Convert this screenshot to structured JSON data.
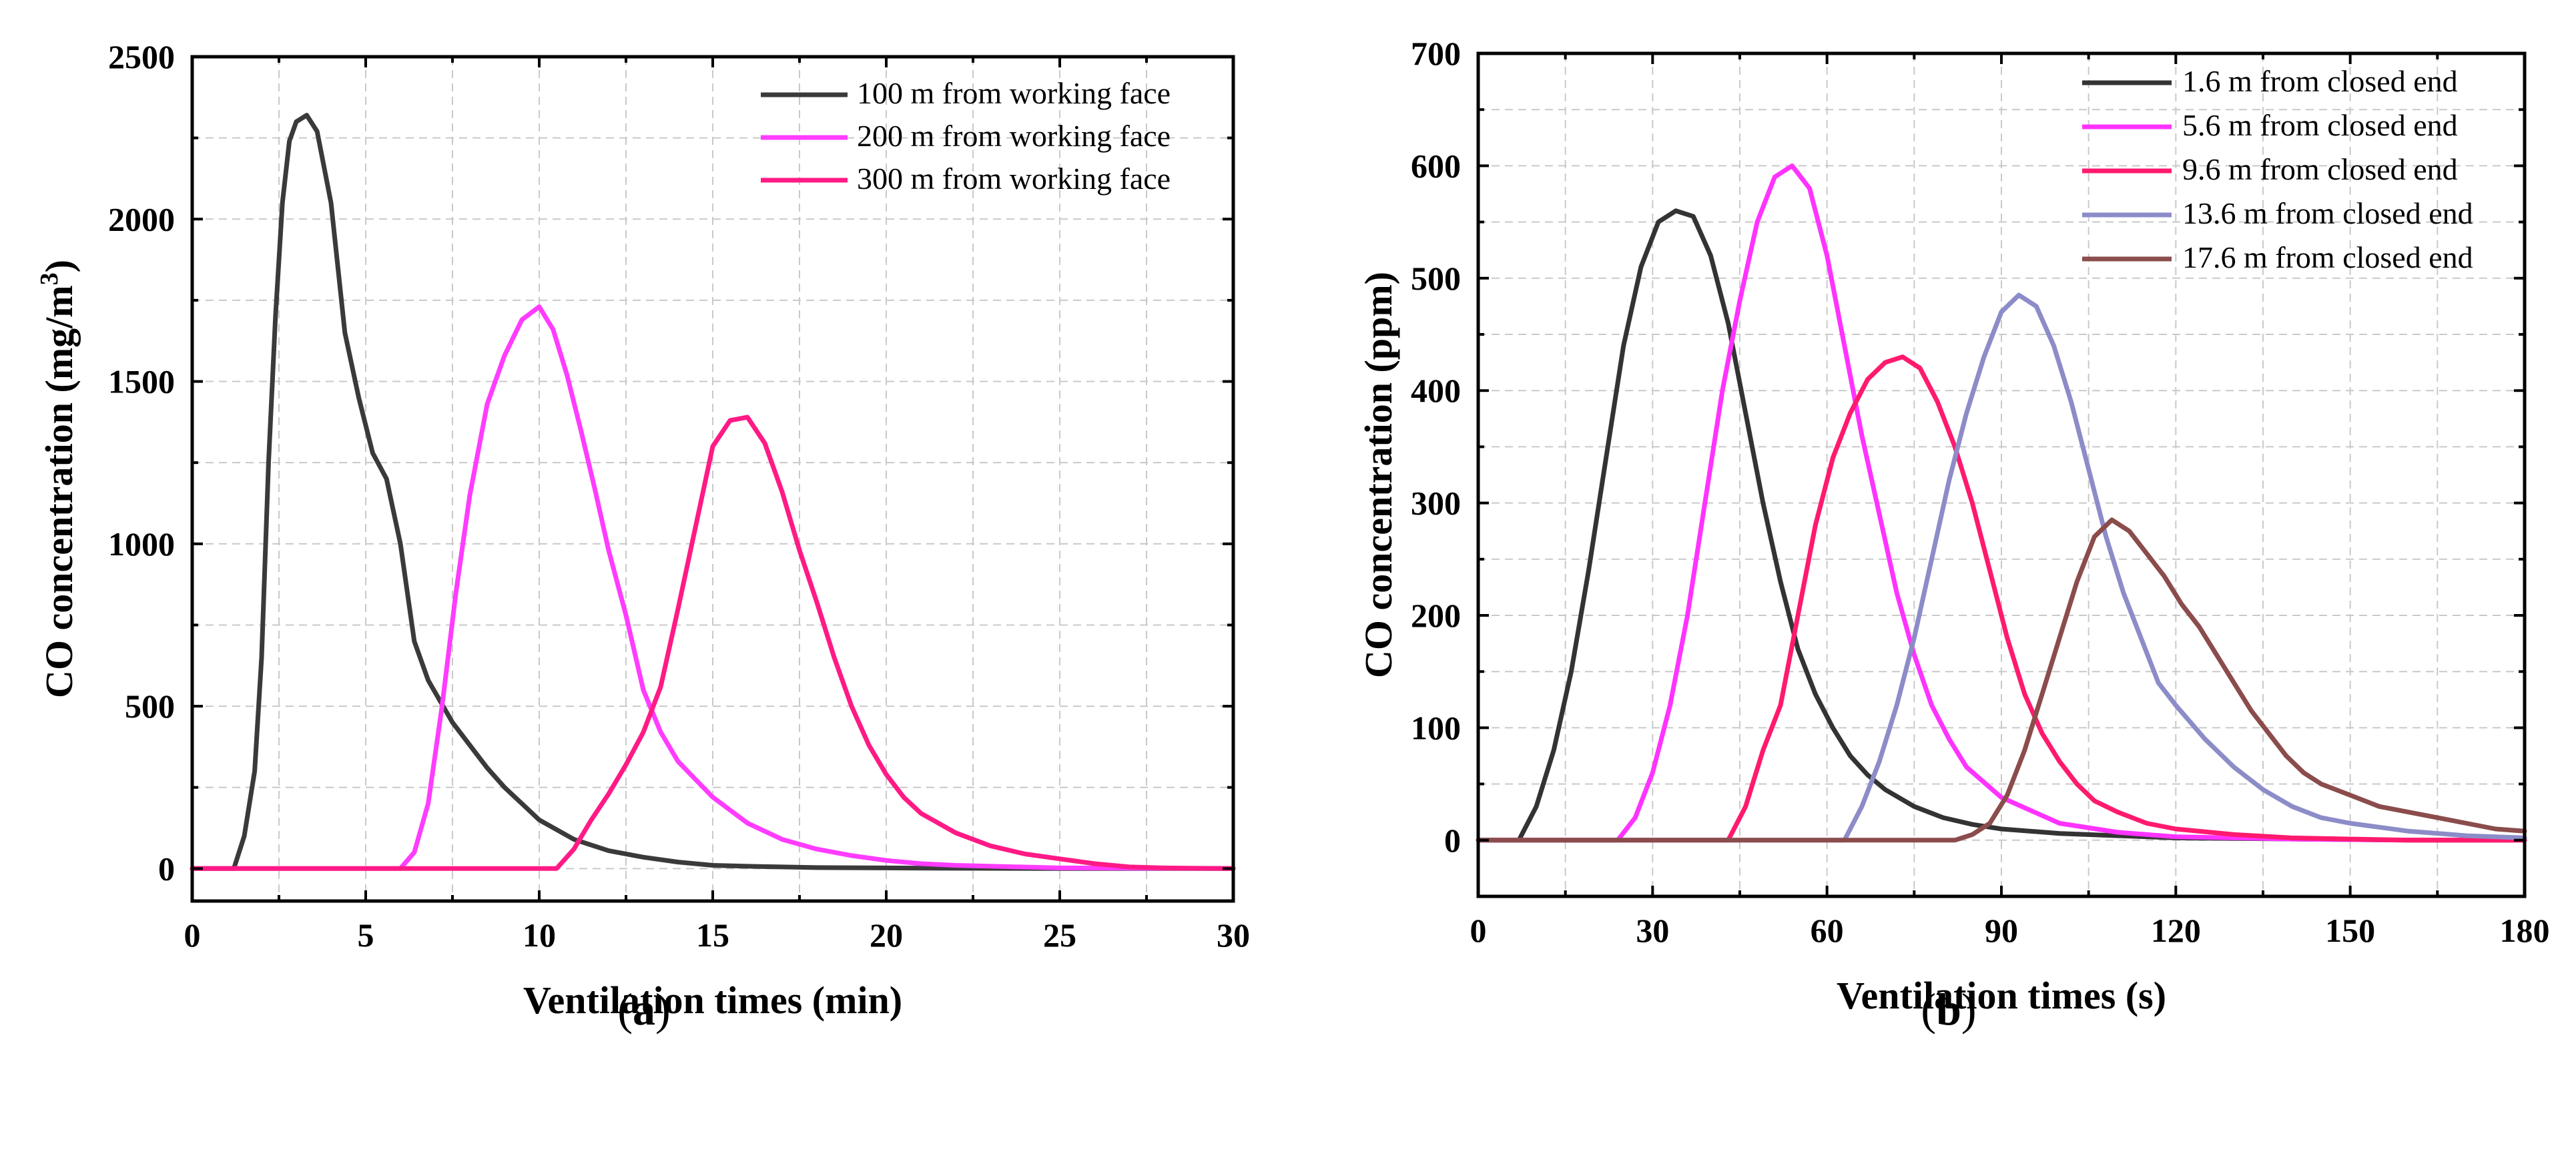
{
  "chart_data": [
    {
      "type": "line",
      "panel": "a",
      "caption": {
        "open": "(",
        "letter": "a",
        "close": ")"
      },
      "xlabel": "Ventilation times (min)",
      "ylabel": "CO concentration (mg/m³)",
      "ylabel_parts": {
        "main": "CO concentration (mg/m",
        "sup": "3",
        "end": ")"
      },
      "xlim": [
        0,
        30
      ],
      "ylim": [
        -100,
        2500
      ],
      "xticks": [
        0,
        5,
        10,
        15,
        20,
        25,
        30
      ],
      "yticks": [
        0,
        500,
        1000,
        1500,
        2000,
        2500
      ],
      "grid": true,
      "legend_position": "top-right",
      "series": [
        {
          "name": "100 m from working face",
          "color": "#3a3a3a",
          "x": [
            0,
            1.2,
            1.5,
            1.8,
            2.0,
            2.2,
            2.4,
            2.6,
            2.8,
            3.0,
            3.3,
            3.6,
            4.0,
            4.4,
            4.8,
            5.2,
            5.6,
            6.0,
            6.4,
            6.8,
            7.5,
            8.0,
            8.5,
            9.0,
            9.5,
            10.0,
            11.0,
            12.0,
            13.0,
            14.0,
            15.0,
            16.0,
            17.0,
            18.0,
            20.0,
            22.0,
            25.0,
            30.0
          ],
          "values": [
            0,
            0,
            100,
            300,
            650,
            1250,
            1700,
            2050,
            2240,
            2300,
            2320,
            2270,
            2050,
            1650,
            1450,
            1280,
            1200,
            1000,
            700,
            580,
            450,
            380,
            310,
            250,
            200,
            150,
            90,
            55,
            35,
            20,
            10,
            7,
            5,
            3,
            2,
            1,
            0,
            0
          ]
        },
        {
          "name": "200 m from working face",
          "color": "#ff3cff",
          "x": [
            0,
            6.0,
            6.4,
            6.8,
            7.2,
            7.6,
            8.0,
            8.5,
            9.0,
            9.5,
            10.0,
            10.4,
            10.8,
            11.2,
            11.6,
            12.0,
            12.5,
            13.0,
            13.5,
            14.0,
            15.0,
            16.0,
            17.0,
            18.0,
            19.0,
            20.0,
            21.0,
            22.0,
            25.0,
            30.0
          ],
          "values": [
            0,
            0,
            50,
            200,
            500,
            850,
            1150,
            1430,
            1580,
            1690,
            1730,
            1660,
            1520,
            1350,
            1170,
            980,
            780,
            550,
            420,
            330,
            220,
            140,
            90,
            60,
            40,
            25,
            15,
            10,
            2,
            0
          ]
        },
        {
          "name": "300 m from working face",
          "color": "#ff1a85",
          "x": [
            0,
            10.5,
            11.0,
            11.5,
            12.0,
            12.5,
            13.0,
            13.5,
            14.0,
            14.5,
            15.0,
            15.5,
            16.0,
            16.5,
            17.0,
            17.5,
            18.0,
            18.5,
            19.0,
            19.5,
            20.0,
            20.5,
            21.0,
            21.5,
            22.0,
            23.0,
            24.0,
            25.0,
            26.0,
            27.0,
            28.0,
            30.0
          ],
          "values": [
            0,
            0,
            60,
            150,
            230,
            320,
            420,
            560,
            800,
            1050,
            1300,
            1380,
            1390,
            1310,
            1160,
            980,
            820,
            650,
            500,
            380,
            290,
            220,
            170,
            140,
            110,
            70,
            45,
            30,
            15,
            5,
            2,
            0
          ]
        }
      ]
    },
    {
      "type": "line",
      "panel": "b",
      "caption": {
        "open": "(",
        "letter": "b",
        "close": ")"
      },
      "xlabel": "Ventilation times (s)",
      "ylabel": "CO concentration (ppm)",
      "xlim": [
        0,
        180
      ],
      "ylim": [
        -50,
        700
      ],
      "xticks": [
        0,
        30,
        60,
        90,
        120,
        150,
        180
      ],
      "yticks": [
        0,
        100,
        200,
        300,
        400,
        500,
        600,
        700
      ],
      "grid": true,
      "legend_position": "top-right",
      "series": [
        {
          "name": "1.6 m from closed end",
          "color": "#333333",
          "x": [
            0,
            7,
            10,
            13,
            16,
            19,
            22,
            25,
            28,
            31,
            34,
            37,
            40,
            43,
            46,
            49,
            52,
            55,
            58,
            61,
            64,
            67,
            70,
            75,
            80,
            85,
            90,
            100,
            110,
            120,
            140,
            160,
            180
          ],
          "values": [
            0,
            0,
            30,
            80,
            150,
            240,
            340,
            440,
            510,
            550,
            560,
            555,
            520,
            460,
            380,
            300,
            230,
            170,
            130,
            100,
            75,
            58,
            45,
            30,
            20,
            14,
            10,
            6,
            4,
            2,
            1,
            0,
            0
          ]
        },
        {
          "name": "5.6 m from closed end",
          "color": "#ff33ff",
          "x": [
            0,
            24,
            27,
            30,
            33,
            36,
            39,
            42,
            45,
            48,
            51,
            54,
            57,
            60,
            63,
            66,
            69,
            72,
            75,
            78,
            81,
            84,
            90,
            100,
            110,
            120,
            140,
            160,
            180
          ],
          "values": [
            0,
            0,
            20,
            60,
            120,
            200,
            300,
            400,
            480,
            550,
            590,
            600,
            580,
            520,
            440,
            360,
            290,
            220,
            165,
            120,
            90,
            65,
            38,
            15,
            7,
            3,
            1,
            0,
            0
          ]
        },
        {
          "name": "9.6 m from closed end",
          "color": "#ff1a6e",
          "x": [
            0,
            43,
            46,
            49,
            52,
            55,
            58,
            61,
            64,
            67,
            70,
            73,
            76,
            79,
            82,
            85,
            88,
            91,
            94,
            97,
            100,
            103,
            106,
            110,
            115,
            120,
            130,
            140,
            150,
            160,
            180
          ],
          "values": [
            0,
            0,
            30,
            80,
            120,
            200,
            280,
            340,
            380,
            410,
            425,
            430,
            420,
            390,
            350,
            300,
            240,
            180,
            130,
            95,
            70,
            50,
            35,
            25,
            15,
            10,
            5,
            2,
            1,
            0,
            0
          ]
        },
        {
          "name": "13.6 m from closed end",
          "color": "#8c8cc8",
          "x": [
            0,
            63,
            66,
            69,
            72,
            75,
            78,
            81,
            84,
            87,
            90,
            93,
            96,
            99,
            102,
            105,
            108,
            111,
            114,
            117,
            120,
            125,
            130,
            135,
            140,
            145,
            150,
            160,
            170,
            180
          ],
          "values": [
            0,
            0,
            30,
            70,
            120,
            180,
            250,
            320,
            380,
            430,
            470,
            485,
            475,
            440,
            390,
            330,
            270,
            220,
            180,
            140,
            120,
            90,
            65,
            45,
            30,
            20,
            15,
            8,
            4,
            2
          ]
        },
        {
          "name": "17.6 m from closed end",
          "color": "#8b4c4c",
          "x": [
            0,
            82,
            85,
            88,
            91,
            94,
            97,
            100,
            103,
            106,
            109,
            112,
            115,
            118,
            121,
            124,
            127,
            130,
            133,
            136,
            139,
            142,
            145,
            150,
            155,
            160,
            165,
            170,
            175,
            180
          ],
          "values": [
            0,
            0,
            5,
            15,
            40,
            80,
            130,
            180,
            230,
            270,
            285,
            275,
            255,
            235,
            210,
            190,
            165,
            140,
            115,
            95,
            75,
            60,
            50,
            40,
            30,
            25,
            20,
            15,
            10,
            8
          ]
        }
      ]
    }
  ]
}
